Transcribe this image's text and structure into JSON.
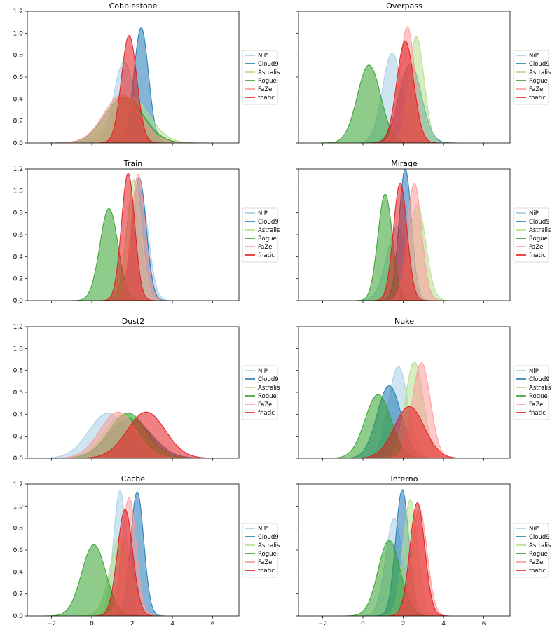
{
  "chart_data": {
    "type": "area",
    "chart_kind": "kde-density",
    "xlim": [
      -3.2,
      7.3
    ],
    "ylim": [
      0,
      1.2
    ],
    "x_ticks": [
      -2,
      0,
      2,
      4,
      6
    ],
    "y_ticks": [
      0.0,
      0.2,
      0.4,
      0.6,
      0.8,
      1.0,
      1.2
    ],
    "x_tick_labels_shown_on": "bottom row only",
    "y_tick_labels_shown_on": "left column only",
    "legend": [
      "NiP",
      "Cloud9",
      "Astralis",
      "Rogue",
      "FaZe",
      "fnatic"
    ],
    "legend_placement": "right of each panel",
    "colors": {
      "NiP": "#a6cee3",
      "Cloud9": "#1f78b4",
      "Astralis": "#b2df8a",
      "Rogue": "#33a02c",
      "FaZe": "#fb9a99",
      "fnatic": "#e31a1c"
    },
    "panels": [
      {
        "title": "Cobblestone",
        "series": [
          {
            "name": "NiP",
            "peak_x": 1.6,
            "peak_y": 0.74,
            "sd": 0.5
          },
          {
            "name": "Cloud9",
            "peak_x": 2.45,
            "peak_y": 1.05,
            "sd": 0.36
          },
          {
            "name": "Astralis",
            "peak_x": 1.9,
            "peak_y": 0.42,
            "sd": 0.95
          },
          {
            "name": "Rogue",
            "peak_x": 1.6,
            "peak_y": 0.42,
            "sd": 0.95
          },
          {
            "name": "FaZe",
            "peak_x": 1.5,
            "peak_y": 0.44,
            "sd": 0.9
          },
          {
            "name": "fnatic",
            "peak_x": 1.85,
            "peak_y": 0.98,
            "sd": 0.38
          }
        ]
      },
      {
        "title": "Overpass",
        "series": [
          {
            "name": "NiP",
            "peak_x": 1.45,
            "peak_y": 0.82,
            "sd": 0.48
          },
          {
            "name": "Cloud9",
            "peak_x": 2.35,
            "peak_y": 0.72,
            "sd": 0.55
          },
          {
            "name": "Astralis",
            "peak_x": 2.65,
            "peak_y": 0.97,
            "sd": 0.38
          },
          {
            "name": "Rogue",
            "peak_x": 0.3,
            "peak_y": 0.71,
            "sd": 0.58
          },
          {
            "name": "FaZe",
            "peak_x": 2.2,
            "peak_y": 1.06,
            "sd": 0.38
          },
          {
            "name": "fnatic",
            "peak_x": 2.1,
            "peak_y": 0.93,
            "sd": 0.42
          }
        ]
      },
      {
        "title": "Train",
        "series": [
          {
            "name": "NiP",
            "peak_x": 2.4,
            "peak_y": 1.0,
            "sd": 0.4
          },
          {
            "name": "Cloud9",
            "peak_x": 2.35,
            "peak_y": 1.12,
            "sd": 0.35
          },
          {
            "name": "Astralis",
            "peak_x": 2.1,
            "peak_y": 1.1,
            "sd": 0.36
          },
          {
            "name": "Rogue",
            "peak_x": 0.85,
            "peak_y": 0.84,
            "sd": 0.45
          },
          {
            "name": "FaZe",
            "peak_x": 2.3,
            "peak_y": 1.15,
            "sd": 0.34
          },
          {
            "name": "fnatic",
            "peak_x": 1.8,
            "peak_y": 1.16,
            "sd": 0.33
          }
        ]
      },
      {
        "title": "Mirage",
        "series": [
          {
            "name": "NiP",
            "peak_x": 1.7,
            "peak_y": 0.67,
            "sd": 0.52
          },
          {
            "name": "Cloud9",
            "peak_x": 2.1,
            "peak_y": 1.2,
            "sd": 0.31
          },
          {
            "name": "Astralis",
            "peak_x": 2.7,
            "peak_y": 0.87,
            "sd": 0.42
          },
          {
            "name": "Rogue",
            "peak_x": 1.1,
            "peak_y": 0.97,
            "sd": 0.36
          },
          {
            "name": "FaZe",
            "peak_x": 2.55,
            "peak_y": 1.07,
            "sd": 0.36
          },
          {
            "name": "fnatic",
            "peak_x": 1.85,
            "peak_y": 1.07,
            "sd": 0.34
          }
        ]
      },
      {
        "title": "Dust2",
        "series": [
          {
            "name": "NiP",
            "peak_x": 0.8,
            "peak_y": 0.41,
            "sd": 0.95
          },
          {
            "name": "Cloud9",
            "peak_x": 1.9,
            "peak_y": 0.36,
            "sd": 1.05
          },
          {
            "name": "Astralis",
            "peak_x": 1.6,
            "peak_y": 0.4,
            "sd": 0.95
          },
          {
            "name": "Rogue",
            "peak_x": 1.8,
            "peak_y": 0.41,
            "sd": 0.95
          },
          {
            "name": "FaZe",
            "peak_x": 1.3,
            "peak_y": 0.42,
            "sd": 0.9
          },
          {
            "name": "fnatic",
            "peak_x": 2.7,
            "peak_y": 0.42,
            "sd": 0.95
          }
        ]
      },
      {
        "title": "Nuke",
        "series": [
          {
            "name": "NiP",
            "peak_x": 1.75,
            "peak_y": 0.84,
            "sd": 0.48
          },
          {
            "name": "Cloud9",
            "peak_x": 1.3,
            "peak_y": 0.66,
            "sd": 0.6
          },
          {
            "name": "Astralis",
            "peak_x": 2.55,
            "peak_y": 0.88,
            "sd": 0.45
          },
          {
            "name": "Rogue",
            "peak_x": 0.75,
            "peak_y": 0.58,
            "sd": 0.65
          },
          {
            "name": "FaZe",
            "peak_x": 2.9,
            "peak_y": 0.87,
            "sd": 0.45
          },
          {
            "name": "fnatic",
            "peak_x": 2.3,
            "peak_y": 0.47,
            "sd": 0.75
          }
        ]
      },
      {
        "title": "Cache",
        "series": [
          {
            "name": "NiP",
            "peak_x": 1.4,
            "peak_y": 1.14,
            "sd": 0.33
          },
          {
            "name": "Cloud9",
            "peak_x": 2.25,
            "peak_y": 1.13,
            "sd": 0.33
          },
          {
            "name": "Astralis",
            "peak_x": 1.4,
            "peak_y": 0.72,
            "sd": 0.5
          },
          {
            "name": "Rogue",
            "peak_x": 0.1,
            "peak_y": 0.65,
            "sd": 0.6
          },
          {
            "name": "FaZe",
            "peak_x": 1.85,
            "peak_y": 1.08,
            "sd": 0.35
          },
          {
            "name": "fnatic",
            "peak_x": 1.65,
            "peak_y": 0.97,
            "sd": 0.38
          }
        ]
      },
      {
        "title": "Inferno",
        "series": [
          {
            "name": "NiP",
            "peak_x": 1.55,
            "peak_y": 0.89,
            "sd": 0.42
          },
          {
            "name": "Cloud9",
            "peak_x": 1.95,
            "peak_y": 1.15,
            "sd": 0.33
          },
          {
            "name": "Astralis",
            "peak_x": 2.35,
            "peak_y": 1.06,
            "sd": 0.36
          },
          {
            "name": "Rogue",
            "peak_x": 1.3,
            "peak_y": 0.69,
            "sd": 0.55
          },
          {
            "name": "FaZe",
            "peak_x": 2.8,
            "peak_y": 0.98,
            "sd": 0.38
          },
          {
            "name": "fnatic",
            "peak_x": 2.7,
            "peak_y": 1.03,
            "sd": 0.37
          }
        ]
      }
    ]
  }
}
